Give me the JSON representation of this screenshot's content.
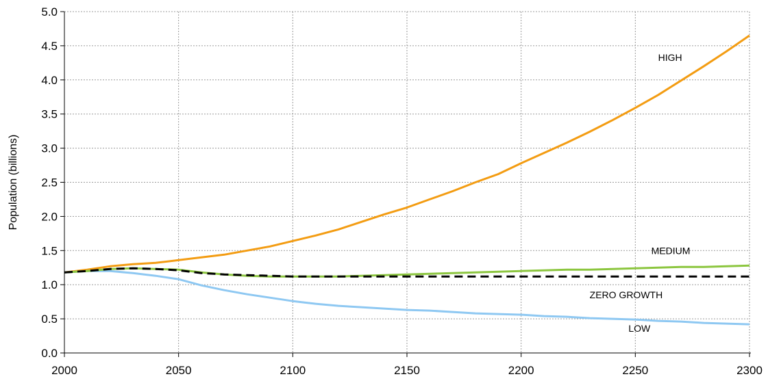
{
  "chart_data": {
    "type": "line",
    "title": "",
    "xlabel": "",
    "ylabel": "Population (billions)",
    "xlim": [
      2000,
      2300
    ],
    "ylim": [
      0.0,
      5.0
    ],
    "x_ticks": [
      "2000",
      "2050",
      "2100",
      "2150",
      "2200",
      "2250",
      "2300"
    ],
    "y_ticks": [
      "0.0",
      "0.5",
      "1.0",
      "1.5",
      "2.0",
      "2.5",
      "3.0",
      "3.5",
      "4.0",
      "4.5",
      "5.0"
    ],
    "grid": true,
    "x": [
      2000,
      2010,
      2020,
      2030,
      2040,
      2050,
      2060,
      2070,
      2080,
      2090,
      2100,
      2110,
      2120,
      2130,
      2140,
      2150,
      2160,
      2170,
      2180,
      2190,
      2200,
      2210,
      2220,
      2230,
      2240,
      2250,
      2260,
      2270,
      2280,
      2290,
      2300
    ],
    "series": [
      {
        "name": "HIGH",
        "color": "#f39c12",
        "dash": "solid",
        "values": [
          1.18,
          1.22,
          1.27,
          1.3,
          1.32,
          1.36,
          1.4,
          1.44,
          1.5,
          1.56,
          1.64,
          1.72,
          1.81,
          1.92,
          2.03,
          2.13,
          2.25,
          2.37,
          2.5,
          2.62,
          2.78,
          2.93,
          3.08,
          3.24,
          3.41,
          3.59,
          3.78,
          3.99,
          4.2,
          4.42,
          4.65
        ]
      },
      {
        "name": "MEDIUM",
        "color": "#8cc63f",
        "dash": "solid",
        "values": [
          1.18,
          1.2,
          1.23,
          1.24,
          1.23,
          1.22,
          1.18,
          1.15,
          1.13,
          1.12,
          1.12,
          1.12,
          1.12,
          1.13,
          1.14,
          1.15,
          1.16,
          1.17,
          1.18,
          1.19,
          1.2,
          1.21,
          1.22,
          1.22,
          1.23,
          1.24,
          1.25,
          1.26,
          1.26,
          1.27,
          1.28
        ]
      },
      {
        "name": "ZERO GROWTH",
        "color": "#000000",
        "dash": "dashed",
        "values": [
          1.18,
          1.2,
          1.23,
          1.24,
          1.23,
          1.21,
          1.17,
          1.15,
          1.14,
          1.13,
          1.12,
          1.12,
          1.12,
          1.12,
          1.12,
          1.12,
          1.12,
          1.12,
          1.12,
          1.12,
          1.12,
          1.12,
          1.12,
          1.12,
          1.12,
          1.12,
          1.12,
          1.12,
          1.12,
          1.12,
          1.12
        ]
      },
      {
        "name": "LOW",
        "color": "#8ec8f2",
        "dash": "solid",
        "values": [
          1.18,
          1.2,
          1.2,
          1.17,
          1.13,
          1.08,
          0.99,
          0.92,
          0.86,
          0.81,
          0.76,
          0.72,
          0.69,
          0.67,
          0.65,
          0.63,
          0.62,
          0.6,
          0.58,
          0.57,
          0.56,
          0.54,
          0.53,
          0.51,
          0.5,
          0.49,
          0.47,
          0.46,
          0.44,
          0.43,
          0.42
        ]
      }
    ],
    "annotations": [
      {
        "text": "HIGH",
        "x": 2260,
        "y": 4.28
      },
      {
        "text": "MEDIUM",
        "x": 2257,
        "y": 1.45
      },
      {
        "text": "ZERO GROWTH",
        "x": 2230,
        "y": 0.8
      },
      {
        "text": "LOW",
        "x": 2247,
        "y": 0.31
      }
    ]
  }
}
